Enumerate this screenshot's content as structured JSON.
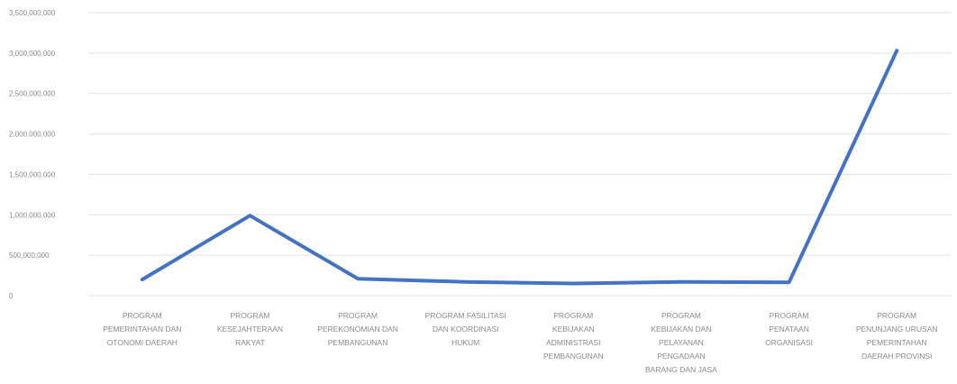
{
  "chart_data": {
    "type": "line",
    "categories": [
      [
        "PROGRAM",
        "PEMERINTAHAN DAN",
        "OTONOMI DAERAH"
      ],
      [
        "PROGRAM",
        "KESEJAHTERAAN",
        "RAKYAT"
      ],
      [
        "PROGRAM",
        "PEREKONOMIAN DAN",
        "PEMBANGUNAN"
      ],
      [
        "PROGRAM FASILITASI",
        "DAN KOORDINASI",
        "HUKUM"
      ],
      [
        "PROGRAM",
        "KEBIJAKAN",
        "ADMINISTRASI",
        "PEMBANGUNAN"
      ],
      [
        "PROGRAM",
        "KEBIJAKAN DAN",
        "PELAYANAN",
        "PENGADAAN",
        "BARANG DAN JASA"
      ],
      [
        "PROGRAM",
        "PENATAAN",
        "ORGANISASI"
      ],
      [
        "PROGRAM",
        "PENUNJANG URUSAN",
        "PEMERINTAHAN",
        "DAERAH PROVINSI"
      ]
    ],
    "series": [
      {
        "values": [
          200000000,
          990000000,
          210000000,
          170000000,
          150000000,
          170000000,
          165000000,
          3030000000
        ]
      }
    ],
    "yticks": [
      "0",
      "500,000,000",
      "1,000,000,000",
      "1,500,000,000",
      "2,000,000,000",
      "2,500,000,000",
      "3,000,000,000",
      "3,500,000,000"
    ],
    "ylim": [
      0,
      3500000000
    ],
    "grid": true,
    "colors": {
      "line": "#4472c4",
      "grid": "#e3e3e3",
      "text": "#8a8a8a"
    }
  }
}
